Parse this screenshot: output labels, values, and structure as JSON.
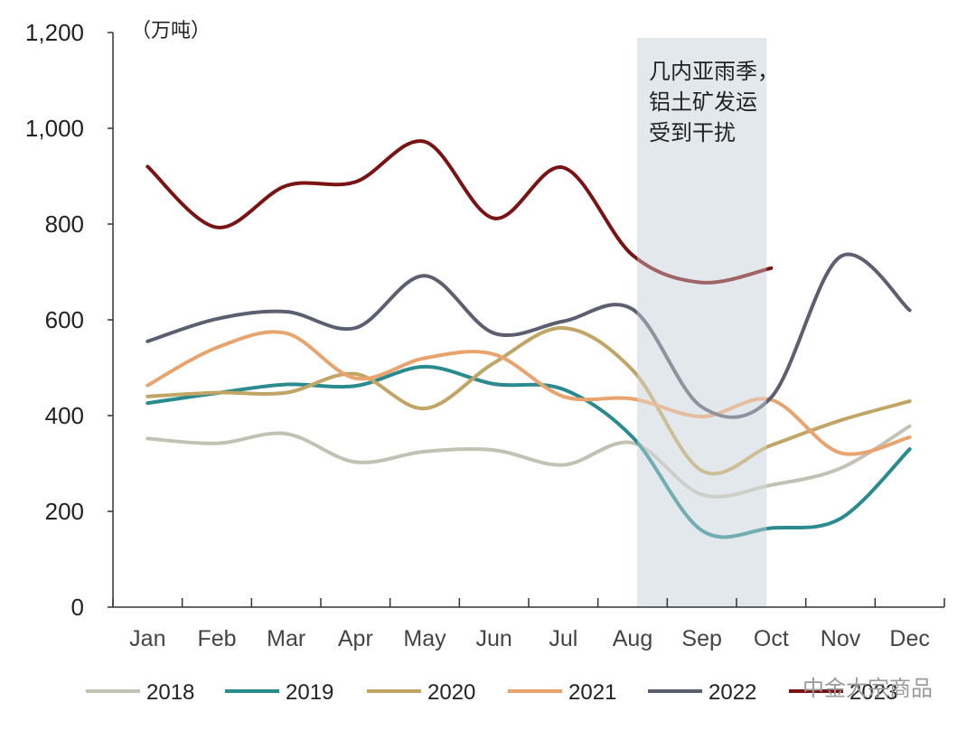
{
  "chart_data": {
    "type": "line",
    "unit": "（万吨）",
    "categories": [
      "Jan",
      "Feb",
      "Mar",
      "Apr",
      "May",
      "Jun",
      "Jul",
      "Aug",
      "Sep",
      "Oct",
      "Nov",
      "Dec"
    ],
    "ylim": [
      0,
      1200
    ],
    "yticks": [
      0,
      200,
      400,
      600,
      800,
      1000,
      1200
    ],
    "ytick_labels": [
      "0",
      "200",
      "400",
      "600",
      "800",
      "1,000",
      "1,200"
    ],
    "grid": false,
    "legend_position": "bottom",
    "shaded_region": {
      "from_category": "Aug",
      "to_category": "Oct",
      "color": "#e3e8ec",
      "annotation": [
        "几内亚雨季，",
        "铝土矿发运",
        "受到干扰"
      ]
    },
    "series": [
      {
        "name": "2018",
        "color": "#c2c1b3",
        "values": [
          352,
          342,
          362,
          303,
          325,
          328,
          297,
          343,
          235,
          255,
          290,
          378
        ]
      },
      {
        "name": "2019",
        "color": "#2a8b8f",
        "values": [
          426,
          447,
          465,
          462,
          502,
          466,
          455,
          355,
          160,
          165,
          185,
          330
        ]
      },
      {
        "name": "2020",
        "color": "#c0a565",
        "values": [
          440,
          448,
          448,
          487,
          415,
          510,
          583,
          495,
          285,
          338,
          390,
          430
        ]
      },
      {
        "name": "2021",
        "color": "#e9a46e",
        "values": [
          463,
          542,
          572,
          478,
          520,
          528,
          440,
          435,
          398,
          433,
          322,
          355
        ]
      },
      {
        "name": "2022",
        "color": "#5b5f70",
        "values": [
          555,
          602,
          617,
          583,
          692,
          572,
          597,
          622,
          418,
          438,
          732,
          620
        ]
      },
      {
        "name": "2023",
        "color": "#7a1414",
        "values": [
          920,
          793,
          880,
          888,
          972,
          812,
          918,
          735,
          678,
          708,
          null,
          null
        ]
      }
    ]
  },
  "watermark": "中金大宗商品"
}
